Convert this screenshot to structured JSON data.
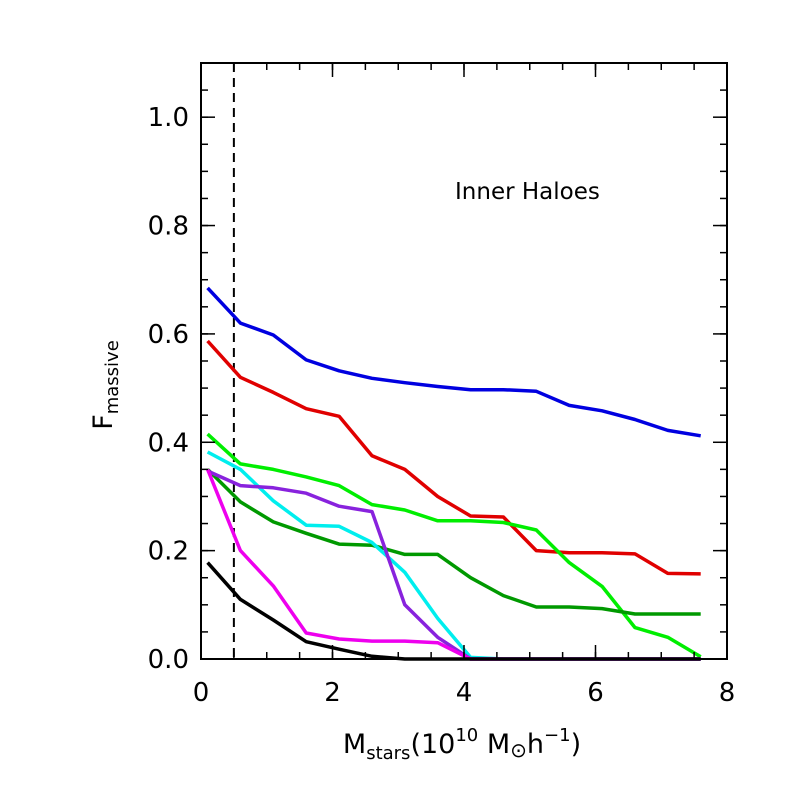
{
  "chart_data": {
    "type": "line",
    "title": "",
    "annotation": "Inner Haloes",
    "xlabel": {
      "main": "M",
      "sub": "stars",
      "rest": "(10",
      "sup": "10",
      "unit": " M",
      "sun": "⊙",
      "h": "h",
      "hsup": "−1",
      "close": ")"
    },
    "ylabel": {
      "main": "F",
      "sub": "massive"
    },
    "xlim": [
      0,
      8
    ],
    "ylim": [
      0,
      1.1
    ],
    "xticks": [
      0,
      2,
      4,
      6,
      8
    ],
    "xtick_labels": [
      "0",
      "2",
      "4",
      "6",
      "8"
    ],
    "yticks": [
      0.0,
      0.2,
      0.4,
      0.6,
      0.8,
      1.0
    ],
    "ytick_labels": [
      "0.0",
      "0.2",
      "0.4",
      "0.6",
      "0.8",
      "1.0"
    ],
    "x_minor_step": 0.5,
    "y_minor_step": 0.05,
    "vline": {
      "x": 0.5,
      "style": "dashed"
    },
    "x": [
      0.1,
      0.6,
      1.1,
      1.6,
      2.1,
      2.6,
      3.1,
      3.6,
      4.1,
      4.6,
      5.1,
      5.6,
      6.1,
      6.6,
      7.1,
      7.6
    ],
    "series": [
      {
        "name": "blue",
        "color": "#0000e0",
        "values": [
          0.685,
          0.62,
          0.598,
          0.552,
          0.532,
          0.518,
          0.51,
          0.503,
          0.497,
          0.497,
          0.494,
          0.468,
          0.458,
          0.442,
          0.422,
          0.412
        ]
      },
      {
        "name": "red",
        "color": "#e00000",
        "values": [
          0.587,
          0.52,
          0.492,
          0.462,
          0.448,
          0.375,
          0.35,
          0.3,
          0.264,
          0.262,
          0.2,
          0.196,
          0.196,
          0.194,
          0.158,
          0.157
        ]
      },
      {
        "name": "green",
        "color": "#00ee00",
        "values": [
          0.415,
          0.36,
          0.35,
          0.336,
          0.32,
          0.285,
          0.275,
          0.255,
          0.255,
          0.252,
          0.238,
          0.178,
          0.134,
          0.058,
          0.04,
          0.004
        ]
      },
      {
        "name": "dark-green",
        "color": "#009900",
        "values": [
          0.35,
          0.29,
          0.253,
          0.232,
          0.212,
          0.21,
          0.193,
          0.193,
          0.15,
          0.117,
          0.096,
          0.096,
          0.093,
          0.083,
          0.083,
          0.083
        ]
      },
      {
        "name": "cyan",
        "color": "#00eeee",
        "values": [
          0.382,
          0.35,
          0.292,
          0.247,
          0.245,
          0.215,
          0.16,
          0.075,
          0.003,
          0.0,
          0.0,
          0.0,
          0.0,
          0.0,
          0.0,
          0.0
        ]
      },
      {
        "name": "purple",
        "color": "#8822dd",
        "values": [
          0.347,
          0.32,
          0.316,
          0.306,
          0.282,
          0.272,
          0.1,
          0.04,
          0.0,
          0.0,
          0.0,
          0.0,
          0.0,
          0.0,
          0.0,
          0.0
        ]
      },
      {
        "name": "magenta",
        "color": "#ee00ee",
        "values": [
          0.35,
          0.2,
          0.135,
          0.048,
          0.037,
          0.033,
          0.033,
          0.03,
          0.0,
          0.0,
          0.0,
          0.0,
          0.0,
          0.0,
          0.0,
          0.0
        ]
      },
      {
        "name": "black",
        "color": "#000000",
        "values": [
          0.178,
          0.11,
          0.072,
          0.032,
          0.018,
          0.005,
          0.0,
          0.0,
          0.0,
          0.0,
          0.0,
          0.0,
          0.0,
          0.0,
          0.0,
          0.0
        ]
      }
    ]
  }
}
